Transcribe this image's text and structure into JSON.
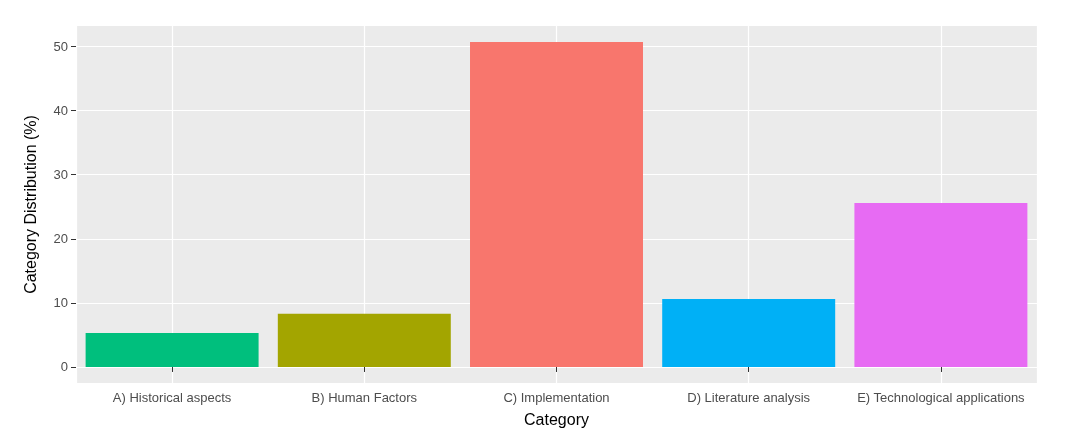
{
  "chart_data": {
    "type": "bar",
    "xlabel": "Category",
    "ylabel": "Category Distribution (%)",
    "categories": [
      "A) Historical aspects",
      "B) Human Factors",
      "C) Implementation",
      "D) Literature analysis",
      "E) Technological applications"
    ],
    "values": [
      5.3,
      8.3,
      50.7,
      10.6,
      25.6
    ],
    "colors": [
      "#00bf7d",
      "#a3a500",
      "#f8766d",
      "#00b0f6",
      "#e76bf3"
    ],
    "ylim": [
      -2.5,
      53.2
    ],
    "yticks": [
      0,
      10,
      20,
      30,
      40,
      50
    ],
    "grid": true
  }
}
